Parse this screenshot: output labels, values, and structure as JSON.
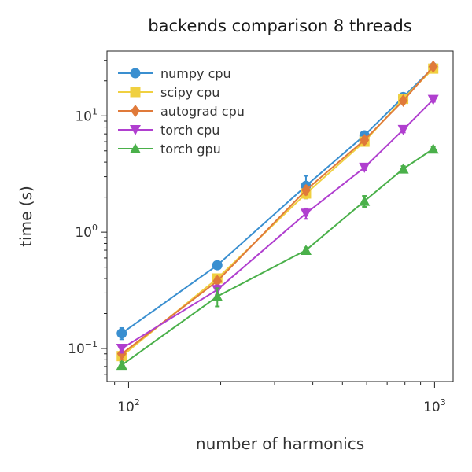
{
  "chart_data": {
    "type": "line",
    "title": "backends comparison 8 threads",
    "xlabel": "number of harmonics",
    "ylabel": "time (s)",
    "xscale": "log",
    "yscale": "log",
    "xlim": [
      85,
      1150
    ],
    "ylim": [
      0.052,
      36
    ],
    "grid": false,
    "legend_position": "top-left",
    "x_ticks": [
      {
        "base": "10",
        "exp": "2",
        "value": 100
      },
      {
        "base": "10",
        "exp": "3",
        "value": 1000
      }
    ],
    "y_ticks": [
      {
        "base": "10",
        "exp": "−1",
        "value": 0.1
      },
      {
        "base": "10",
        "exp": "0",
        "value": 1
      },
      {
        "base": "10",
        "exp": "1",
        "value": 10
      }
    ],
    "series": [
      {
        "name": "numpy cpu",
        "color": "#3a8fd0",
        "marker": "circle",
        "x": [
          95,
          195,
          380,
          590,
          790,
          990
        ],
        "y": [
          0.135,
          0.52,
          2.5,
          6.8,
          14.5,
          26
        ],
        "err": [
          0.015,
          0.03,
          0.55,
          0.5,
          0.8,
          1.0
        ]
      },
      {
        "name": "scipy cpu",
        "color": "#f0d040",
        "marker": "square",
        "x": [
          95,
          195,
          380,
          590,
          790,
          990
        ],
        "y": [
          0.086,
          0.4,
          2.15,
          6.0,
          14.0,
          25.5
        ],
        "err": [
          0.01,
          0.03,
          0.2,
          0.4,
          0.7,
          1.0
        ]
      },
      {
        "name": "autograd cpu",
        "color": "#e07a3a",
        "marker": "diamond",
        "x": [
          95,
          195,
          380,
          590,
          790,
          990
        ],
        "y": [
          0.09,
          0.38,
          2.3,
          6.2,
          13.5,
          26.5
        ],
        "err": [
          0.01,
          0.03,
          0.2,
          0.4,
          0.7,
          1.0
        ]
      },
      {
        "name": "torch cpu",
        "color": "#b03fcf",
        "marker": "triangle-down",
        "x": [
          95,
          195,
          380,
          590,
          790,
          990
        ],
        "y": [
          0.1,
          0.32,
          1.45,
          3.6,
          7.6,
          13.8
        ],
        "err": [
          0.008,
          0.03,
          0.15,
          0.2,
          0.4,
          0.6
        ]
      },
      {
        "name": "torch gpu",
        "color": "#4ab04a",
        "marker": "triangle-up",
        "x": [
          95,
          195,
          380,
          590,
          790,
          990
        ],
        "y": [
          0.072,
          0.28,
          0.7,
          1.85,
          3.5,
          5.2
        ],
        "err": [
          0.005,
          0.05,
          0.04,
          0.2,
          0.2,
          0.25
        ]
      }
    ]
  }
}
